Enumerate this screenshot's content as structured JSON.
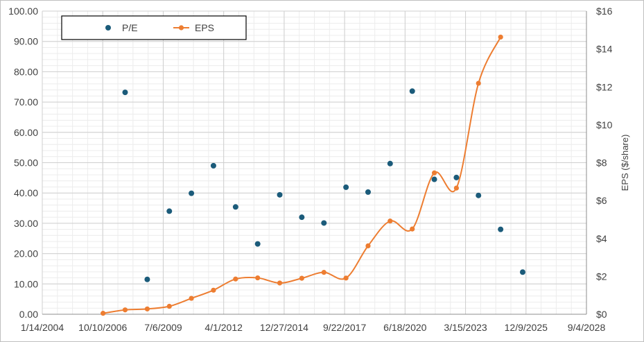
{
  "chart_data": {
    "type": "scatter",
    "title": "",
    "x_axis": {
      "type": "date",
      "tick_labels": [
        "1/14/2004",
        "10/10/2006",
        "7/6/2009",
        "4/1/2012",
        "12/27/2014",
        "9/22/2017",
        "6/18/2020",
        "3/15/2023",
        "12/9/2025",
        "9/4/2028"
      ],
      "tick_dates": [
        "2004-01-14",
        "2006-10-10",
        "2009-07-06",
        "2012-04-01",
        "2014-12-27",
        "2017-09-22",
        "2020-06-18",
        "2023-03-15",
        "2025-12-09",
        "2028-09-04"
      ],
      "range": [
        "2004-01-14",
        "2028-09-04"
      ],
      "minor_gridline_interval_days": 250
    },
    "y_left": {
      "range": [
        0,
        100
      ],
      "tick_labels": [
        "0.00",
        "10.00",
        "20.00",
        "30.00",
        "40.00",
        "50.00",
        "60.00",
        "70.00",
        "80.00",
        "90.00",
        "100.00"
      ],
      "tick_values": [
        0,
        10,
        20,
        30,
        40,
        50,
        60,
        70,
        80,
        90,
        100
      ]
    },
    "y_right": {
      "label": "EPS ($/share)",
      "range": [
        0,
        16
      ],
      "tick_labels": [
        "$0",
        "$2",
        "$4",
        "$6",
        "$8",
        "$10",
        "$12",
        "$14",
        "$16"
      ],
      "tick_values": [
        0,
        2,
        4,
        6,
        8,
        10,
        12,
        14,
        16
      ]
    },
    "grid": true,
    "legend": {
      "placement": "top-left",
      "boxed": true
    },
    "series": [
      {
        "name": "P/E",
        "kind": "scatter",
        "axis": "left",
        "color": "#1b5b7a",
        "points": [
          {
            "x": "2007-10-15",
            "y": 73.2
          },
          {
            "x": "2008-10-15",
            "y": 11.5
          },
          {
            "x": "2009-10-15",
            "y": 34.0
          },
          {
            "x": "2010-10-15",
            "y": 39.9
          },
          {
            "x": "2011-10-15",
            "y": 49.0
          },
          {
            "x": "2012-10-15",
            "y": 35.4
          },
          {
            "x": "2013-10-15",
            "y": 23.2
          },
          {
            "x": "2014-10-15",
            "y": 39.4
          },
          {
            "x": "2015-10-15",
            "y": 32.0
          },
          {
            "x": "2016-10-15",
            "y": 30.1
          },
          {
            "x": "2017-10-15",
            "y": 41.9
          },
          {
            "x": "2018-10-15",
            "y": 40.3
          },
          {
            "x": "2019-10-15",
            "y": 49.7
          },
          {
            "x": "2020-10-15",
            "y": 73.6
          },
          {
            "x": "2021-10-15",
            "y": 44.5
          },
          {
            "x": "2022-10-15",
            "y": 45.1
          },
          {
            "x": "2023-10-15",
            "y": 39.2
          },
          {
            "x": "2024-10-15",
            "y": 28.0
          },
          {
            "x": "2025-10-15",
            "y": 13.9
          }
        ]
      },
      {
        "name": "EPS",
        "kind": "smooth-line-markers",
        "axis": "right",
        "color": "#ed7d31",
        "points": [
          {
            "x": "2006-10-15",
            "y": 0.05
          },
          {
            "x": "2007-10-15",
            "y": 0.23
          },
          {
            "x": "2008-10-15",
            "y": 0.28
          },
          {
            "x": "2009-10-15",
            "y": 0.42
          },
          {
            "x": "2010-10-15",
            "y": 0.84
          },
          {
            "x": "2011-10-15",
            "y": 1.27
          },
          {
            "x": "2012-10-15",
            "y": 1.86
          },
          {
            "x": "2013-10-15",
            "y": 1.92
          },
          {
            "x": "2014-10-15",
            "y": 1.65
          },
          {
            "x": "2015-10-15",
            "y": 1.9
          },
          {
            "x": "2016-10-15",
            "y": 2.21
          },
          {
            "x": "2017-10-15",
            "y": 1.91
          },
          {
            "x": "2018-10-15",
            "y": 3.61
          },
          {
            "x": "2019-10-15",
            "y": 4.92
          },
          {
            "x": "2020-10-15",
            "y": 4.5
          },
          {
            "x": "2021-10-15",
            "y": 7.46
          },
          {
            "x": "2022-10-15",
            "y": 6.66
          },
          {
            "x": "2023-10-15",
            "y": 12.19
          },
          {
            "x": "2024-10-15",
            "y": 14.63
          }
        ]
      }
    ]
  }
}
